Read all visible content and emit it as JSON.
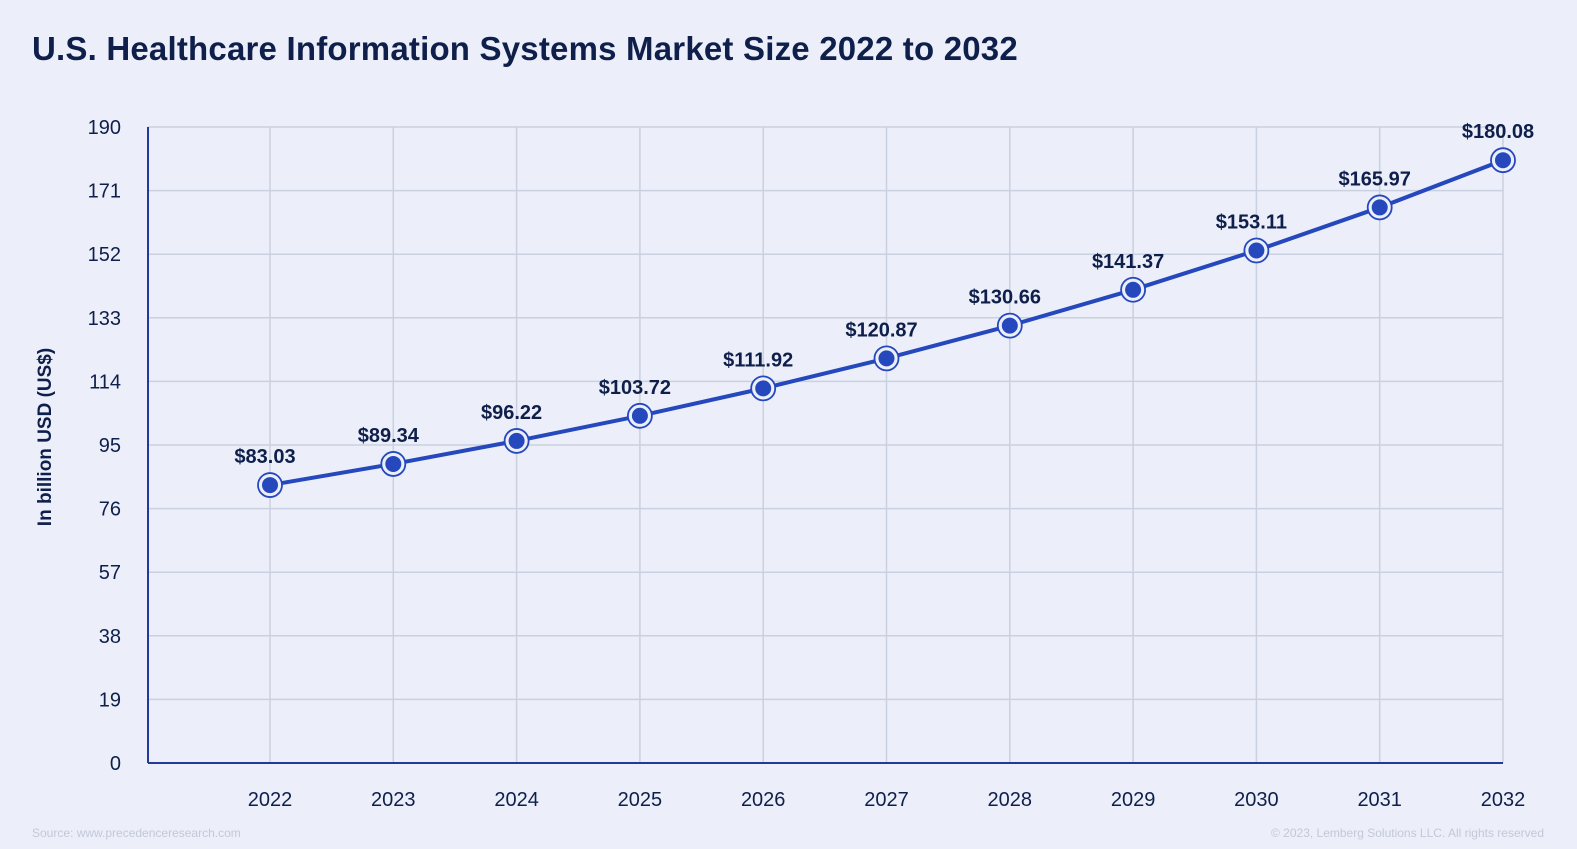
{
  "page": {
    "title": "U.S. Healthcare Information Systems Market Size 2022 to 2032",
    "source": "Source: www.precedenceresearch.com",
    "copyright": "© 2023, Lemberg Solutions LLC. All rights reserved"
  },
  "colors": {
    "background": "#eceff9",
    "grid": "#c9d0e0",
    "axis": "#213a9c",
    "line": "#2548bd",
    "label": "#0f1f4b"
  },
  "chart_data": {
    "type": "line",
    "title": "U.S. Healthcare Information Systems Market Size 2022 to 2032",
    "xlabel": "",
    "ylabel": "In billion USD (US$)",
    "categories": [
      "2022",
      "2023",
      "2024",
      "2025",
      "2026",
      "2027",
      "2028",
      "2029",
      "2030",
      "2031",
      "2032"
    ],
    "values": [
      83.03,
      89.34,
      96.22,
      103.72,
      111.92,
      120.87,
      130.66,
      141.37,
      153.11,
      165.97,
      180.08
    ],
    "data_labels": [
      "$83.03",
      "$89.34",
      "$96.22",
      "$103.72",
      "$111.92",
      "$120.87",
      "$130.66",
      "$141.37",
      "$153.11",
      "$165.97",
      "$180.08"
    ],
    "y_ticks": [
      0,
      19,
      38,
      57,
      76,
      95,
      114,
      133,
      152,
      171,
      190
    ],
    "ylim": [
      0,
      190
    ],
    "grid": true,
    "legend": "none"
  }
}
